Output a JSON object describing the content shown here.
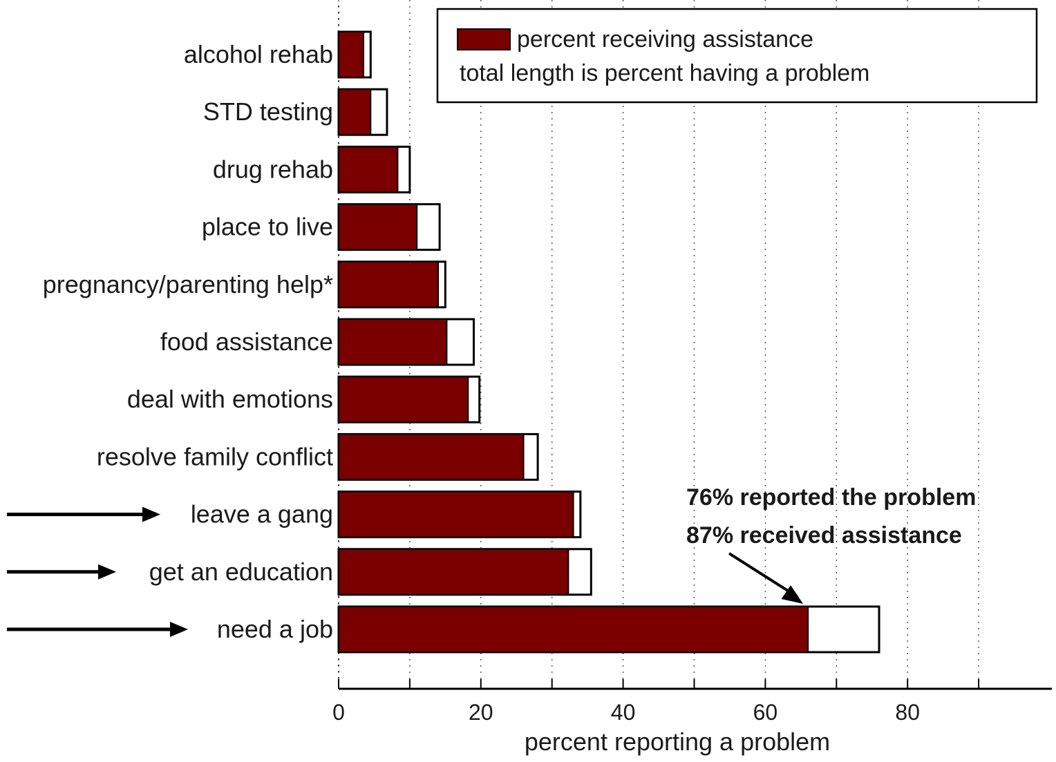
{
  "chart_data": {
    "type": "bar",
    "orientation": "horizontal",
    "categories": [
      "alcohol rehab",
      "STD testing",
      "drug rehab",
      "place to live",
      "pregnancy/parenting help*",
      "food assistance",
      "deal with emotions",
      "resolve family conflict",
      "leave a gang",
      "get an education",
      "need a job"
    ],
    "series": [
      {
        "name": "percent receiving assistance",
        "values": [
          3.5,
          4.5,
          8.3,
          11,
          14,
          15.2,
          18.2,
          26,
          33,
          32.3,
          66
        ],
        "color": "#7a0000"
      },
      {
        "name": "total length is percent having a problem",
        "values": [
          4.5,
          6.8,
          10,
          14.2,
          15,
          19,
          19.8,
          28,
          34,
          35.5,
          76
        ],
        "color": "#ffffff"
      }
    ],
    "xlabel": "percent reporting a problem",
    "ylabel": "",
    "xlim": [
      0,
      100
    ],
    "xticks": [
      0,
      20,
      40,
      60,
      80
    ],
    "xtick_labels": [
      "0",
      "20",
      "40",
      "60",
      "80"
    ],
    "minor_xticks": [
      10,
      30,
      50,
      70,
      90
    ],
    "grid": true,
    "legend_position": "top-right",
    "annotation": {
      "lines": [
        "76% reported the problem",
        "87% received assistance"
      ],
      "target_category": "need a job"
    },
    "highlight_arrows": [
      "leave a gang",
      "get an education",
      "need a job"
    ]
  }
}
